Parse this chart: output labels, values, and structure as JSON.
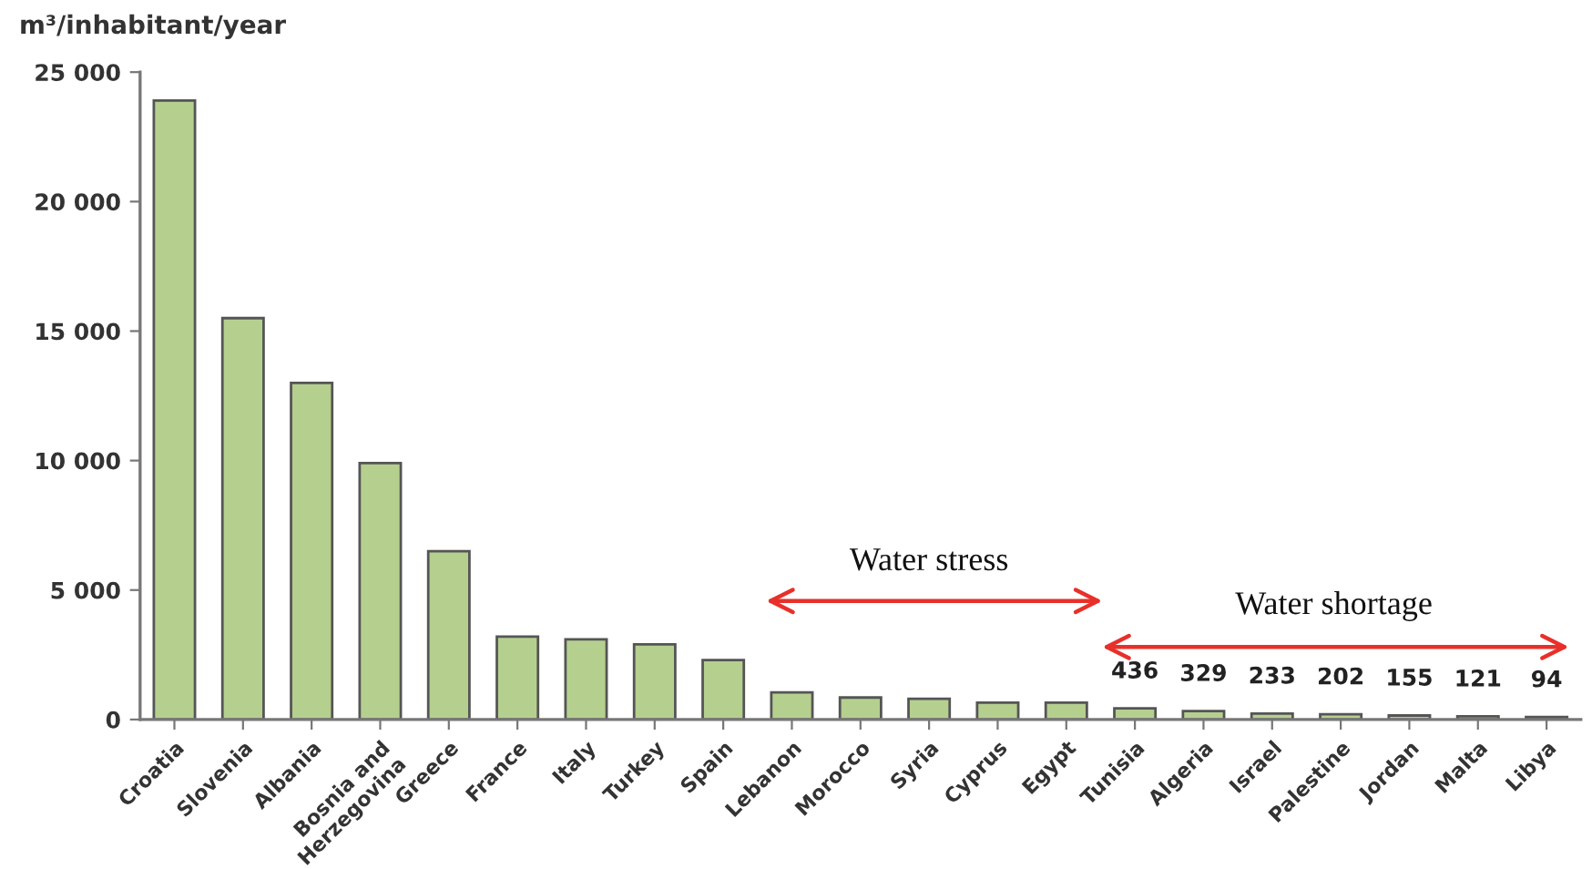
{
  "chart_data": {
    "type": "bar",
    "ylabel": "m³/inhabitant/year",
    "categories": [
      "Croatia",
      "Slovenia",
      "Albania",
      "Bosnia and\nHerzegovina",
      "Greece",
      "France",
      "Italy",
      "Turkey",
      "Spain",
      "Lebanon",
      "Morocco",
      "Syria",
      "Cyprus",
      "Egypt",
      "Tunisia",
      "Algeria",
      "Israel",
      "Palestine",
      "Jordan",
      "Malta",
      "Libya"
    ],
    "values": [
      23900,
      15500,
      13000,
      9900,
      6500,
      3200,
      3100,
      2900,
      2300,
      1050,
      850,
      800,
      650,
      650,
      436,
      329,
      233,
      202,
      155,
      121,
      94
    ],
    "value_labels": [
      null,
      null,
      null,
      null,
      null,
      null,
      null,
      null,
      null,
      null,
      null,
      null,
      null,
      null,
      "436",
      "329",
      "233",
      "202",
      "155",
      "121",
      "94"
    ],
    "color": "#b5cf8f",
    "ylim": [
      0,
      25000
    ],
    "yticks": [
      {
        "value": 0,
        "label": "0"
      },
      {
        "value": 5000,
        "label": "5 000"
      },
      {
        "value": 10000,
        "label": "10 000"
      },
      {
        "value": 15000,
        "label": "15 000"
      },
      {
        "value": 20000,
        "label": "20 000"
      },
      {
        "value": 25000,
        "label": "25 000"
      }
    ],
    "annotations": [
      "Water stress",
      "Water shortage"
    ],
    "grid": false,
    "legend": false
  }
}
